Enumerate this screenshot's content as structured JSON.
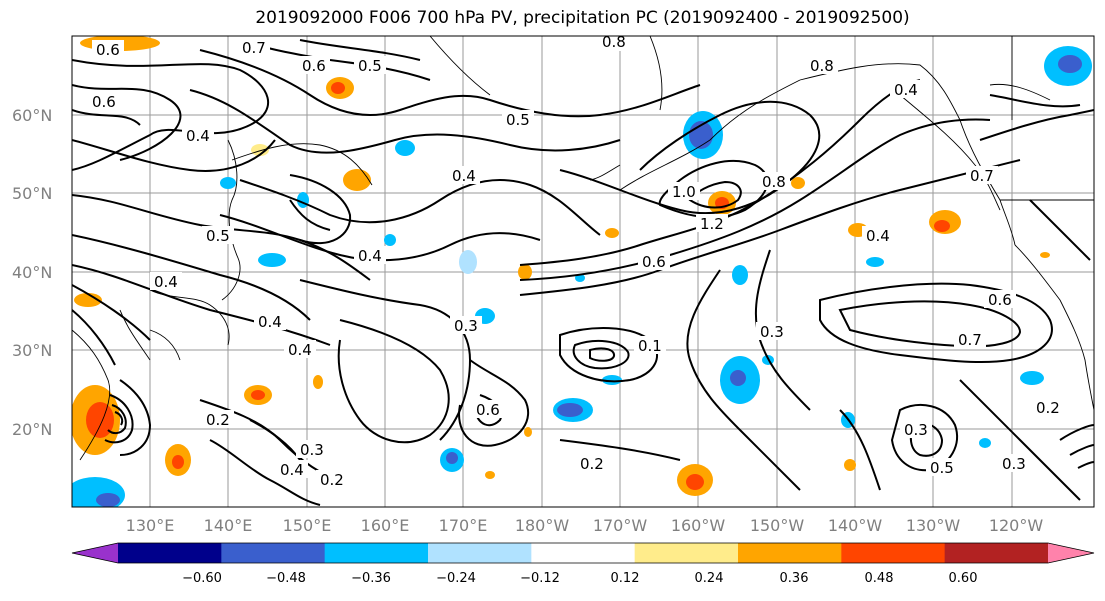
{
  "title": "2019092000 F006 700 hPa PV, precipitation PC (2019092400 - 2019092500)",
  "latitude_labels": [
    "60°N",
    "50°N",
    "40°N",
    "30°N",
    "20°N"
  ],
  "longitude_labels": [
    "130°E",
    "140°E",
    "150°E",
    "160°E",
    "170°E",
    "180°W",
    "170°W",
    "160°W",
    "150°W",
    "140°W",
    "130°W",
    "120°W"
  ],
  "contour_labels": [
    "0.6",
    "0.7",
    "0.6",
    "0.5",
    "0.8",
    "0.8",
    "0.4",
    "0.4",
    "0.5",
    "0.4",
    "1.0",
    "1.2",
    "0.8",
    "0.7",
    "0.5",
    "0.4",
    "0.6",
    "0.4",
    "0.4",
    "0.6",
    "0.4",
    "0.3",
    "0.7",
    "0.6",
    "0.1",
    "0.3",
    "0.2",
    "0.2",
    "0.4",
    "0.3",
    "0.2",
    "0.4",
    "0.3",
    "0.5",
    "0.3",
    "0.2",
    "0.6"
  ],
  "colorbar": {
    "tick_labels": [
      "−0.60",
      "−0.48",
      "−0.36",
      "−0.24",
      "−0.12",
      "0.12",
      "0.24",
      "0.36",
      "0.48",
      "0.60"
    ],
    "colors": [
      "#9932CC",
      "#00008B",
      "#3A5FCD",
      "#00BFFF",
      "#B0E2FF",
      "#FFFFFF",
      "#FFEC8B",
      "#FFA500",
      "#FF4500",
      "#B22222",
      "#FF82AB"
    ]
  }
}
